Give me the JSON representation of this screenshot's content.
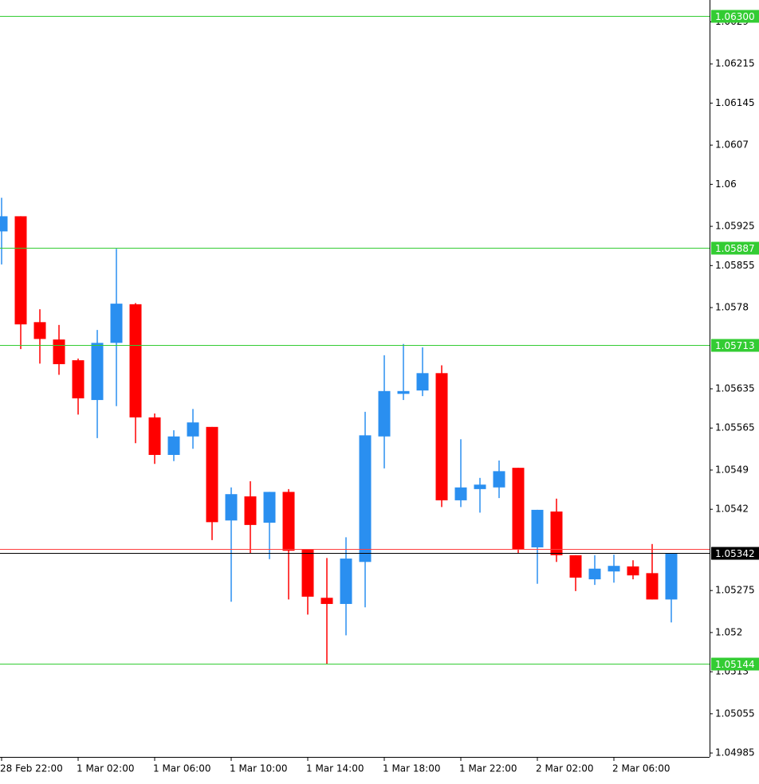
{
  "chart_data": {
    "type": "candlestick",
    "categories": [
      "28 Feb 22:00",
      null,
      null,
      null,
      "1 Mar 02:00",
      null,
      null,
      null,
      "1 Mar 06:00",
      null,
      null,
      null,
      "1 Mar 10:00",
      null,
      null,
      null,
      "1 Mar 14:00",
      null,
      null,
      null,
      "1 Mar 18:00",
      null,
      null,
      null,
      "1 Mar 22:00",
      null,
      null,
      null,
      "2 Mar 02:00",
      null,
      null,
      null,
      "2 Mar 06:00",
      null,
      null,
      null
    ],
    "open": [
      1.05916,
      1.05943,
      1.05754,
      1.05723,
      1.05686,
      1.05615,
      1.05717,
      1.05786,
      1.05584,
      1.05517,
      1.0555,
      1.05567,
      1.054,
      1.05443,
      1.05396,
      1.05451,
      1.05349,
      1.05262,
      1.05251,
      1.05326,
      1.0555,
      1.05626,
      1.05632,
      1.05663,
      1.05436,
      1.05456,
      1.05459,
      1.05494,
      1.05352,
      1.05416,
      1.05338,
      1.05295,
      1.05309,
      1.05318,
      1.05306,
      1.05259
    ],
    "high": [
      1.05976,
      1.05943,
      1.05777,
      1.05749,
      1.05689,
      1.0574,
      1.05885,
      1.05788,
      1.05591,
      1.05561,
      1.05599,
      1.05567,
      1.05459,
      1.0547,
      1.05451,
      1.05456,
      1.05349,
      1.05333,
      1.0537,
      1.05594,
      1.05695,
      1.05715,
      1.05709,
      1.05677,
      1.05545,
      1.05476,
      1.05507,
      1.05494,
      1.05419,
      1.05439,
      1.05338,
      1.05338,
      1.05339,
      1.05329,
      1.05358,
      1.05342
    ],
    "low": [
      1.05857,
      1.05706,
      1.0568,
      1.0566,
      1.05589,
      1.05547,
      1.05604,
      1.05538,
      1.05501,
      1.05506,
      1.05528,
      1.05365,
      1.05255,
      1.05342,
      1.05331,
      1.05259,
      1.05232,
      1.05144,
      1.05195,
      1.05245,
      1.05493,
      1.05615,
      1.05622,
      1.05424,
      1.05424,
      1.05414,
      1.0544,
      1.05342,
      1.05287,
      1.05326,
      1.05274,
      1.05285,
      1.05289,
      1.05295,
      1.05259,
      1.05218
    ],
    "close": [
      1.05943,
      1.0575,
      1.05724,
      1.05679,
      1.05618,
      1.05717,
      1.05787,
      1.05584,
      1.05517,
      1.0555,
      1.05575,
      1.05397,
      1.05447,
      1.05392,
      1.05451,
      1.05346,
      1.05264,
      1.05251,
      1.05332,
      1.05552,
      1.05631,
      1.05631,
      1.05663,
      1.05436,
      1.05459,
      1.05464,
      1.05488,
      1.05348,
      1.05419,
      1.05338,
      1.05298,
      1.05314,
      1.05319,
      1.05302,
      1.05259,
      1.05342
    ],
    "up_color": "#2a8ff0",
    "down_color": "#ff0000",
    "ylim": [
      1.04978,
      1.06329
    ],
    "yticks": [
      1.0629,
      1.06215,
      1.06145,
      1.0607,
      1.06,
      1.05925,
      1.05855,
      1.0578,
      1.05635,
      1.05565,
      1.0549,
      1.0542,
      1.05275,
      1.052,
      1.0513,
      1.05055,
      1.04985
    ],
    "levels": [
      {
        "value": 1.063,
        "label": "1.06300",
        "color": "#33cc33"
      },
      {
        "value": 1.05887,
        "label": "1.05887",
        "color": "#33cc33"
      },
      {
        "value": 1.05713,
        "label": "1.05713",
        "color": "#33cc33"
      },
      {
        "value": 1.05144,
        "label": "1.05144",
        "color": "#33cc33"
      },
      {
        "value": 1.05349,
        "color": "#ff4040"
      },
      {
        "value": 1.05342,
        "label": "1.05342",
        "color": "#000000"
      }
    ]
  }
}
